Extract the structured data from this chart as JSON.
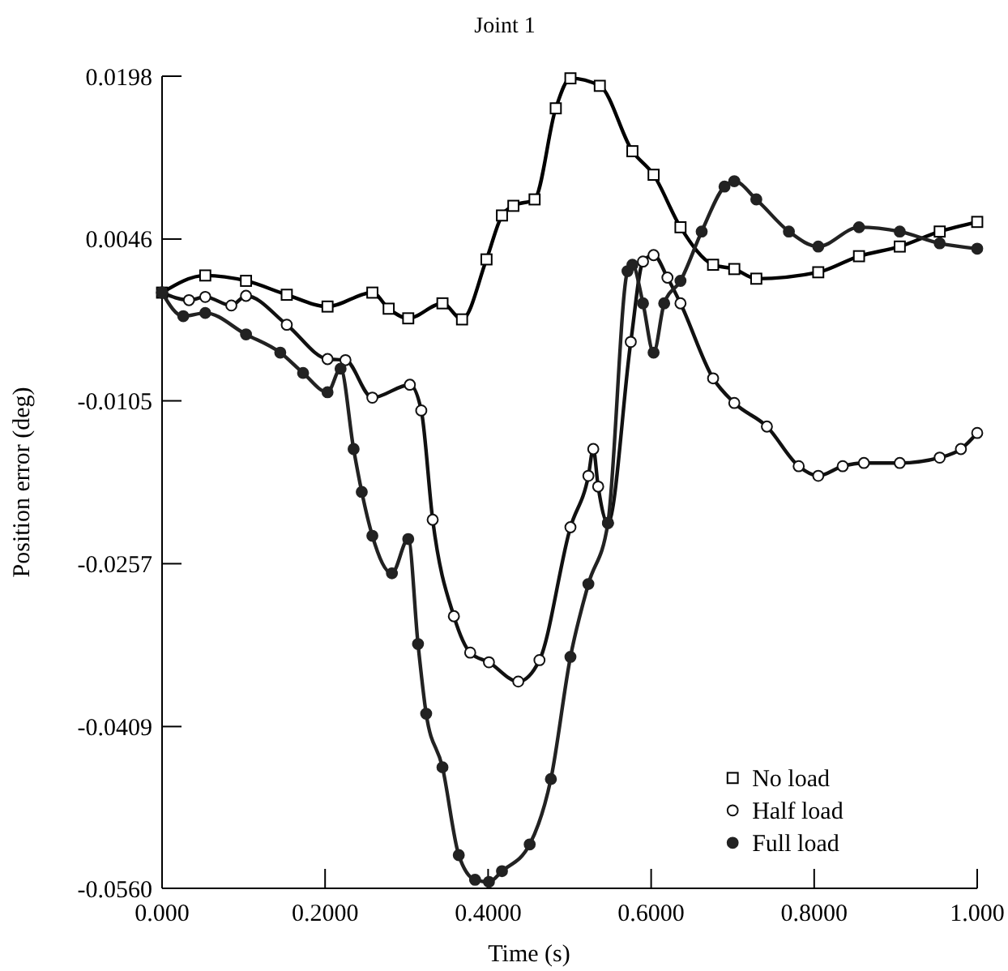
{
  "chart_data": {
    "type": "line",
    "title": "Joint 1",
    "xlabel": "Time (s)",
    "ylabel": "Position error (deg)",
    "xlim": [
      0,
      1
    ],
    "ylim": [
      -0.056,
      0.0198
    ],
    "xticks": [
      {
        "value": 0,
        "label": "0.000"
      },
      {
        "value": 0.2,
        "label": "0.2000"
      },
      {
        "value": 0.4,
        "label": "0.4000"
      },
      {
        "value": 0.6,
        "label": "0.6000"
      },
      {
        "value": 0.8,
        "label": "0.8000"
      },
      {
        "value": 1,
        "label": "1.000"
      }
    ],
    "yticks": [
      {
        "value": -0.056,
        "label": "-0.0560"
      },
      -0.0409,
      -0.0257,
      -0.0105,
      0.0046,
      0.0198
    ],
    "grid": false,
    "legend": "bottom right",
    "line_style": "solid",
    "series": [
      {
        "name": "No load",
        "color": "#000000",
        "marker": "square",
        "x": [
          0,
          0.053,
          0.103,
          0.153,
          0.203,
          0.258,
          0.278,
          0.302,
          0.344,
          0.368,
          0.398,
          0.417,
          0.431,
          0.457,
          0.483,
          0.501,
          0.537,
          0.577,
          0.603,
          0.636,
          0.676,
          0.702,
          0.729,
          0.805,
          0.855,
          0.905,
          0.954,
          1.0
        ],
        "values": [
          -0.0004,
          0.0012,
          0.0007,
          -0.0006,
          -0.0017,
          -0.0004,
          -0.0019,
          -0.0028,
          -0.0014,
          -0.0029,
          0.0027,
          0.0068,
          0.0077,
          0.0083,
          0.0168,
          0.0196,
          0.0189,
          0.0128,
          0.0106,
          0.0057,
          0.0022,
          0.0018,
          0.0009,
          0.0015,
          0.003,
          0.0039,
          0.0053,
          0.0062
        ]
      },
      {
        "name": "Half load",
        "color": "#111111",
        "marker": "circle",
        "x": [
          0,
          0.033,
          0.053,
          0.085,
          0.103,
          0.153,
          0.203,
          0.225,
          0.258,
          0.304,
          0.318,
          0.332,
          0.358,
          0.378,
          0.401,
          0.437,
          0.463,
          0.501,
          0.523,
          0.529,
          0.535,
          0.547,
          0.575,
          0.59,
          0.603,
          0.62,
          0.636,
          0.676,
          0.702,
          0.742,
          0.781,
          0.805,
          0.835,
          0.861,
          0.905,
          0.954,
          0.98,
          1.0
        ],
        "values": [
          -0.0004,
          -0.0011,
          -0.0008,
          -0.0016,
          -0.0007,
          -0.0034,
          -0.0066,
          -0.0067,
          -0.0102,
          -0.009,
          -0.0114,
          -0.0216,
          -0.0306,
          -0.034,
          -0.0349,
          -0.0367,
          -0.0347,
          -0.0223,
          -0.0175,
          -0.015,
          -0.0185,
          -0.0219,
          -0.005,
          0.0025,
          0.0031,
          0.001,
          -0.0014,
          -0.0084,
          -0.0107,
          -0.0129,
          -0.0166,
          -0.0175,
          -0.0166,
          -0.0163,
          -0.0163,
          -0.0158,
          -0.015,
          -0.0135
        ]
      },
      {
        "name": "Full load",
        "color": "#222222",
        "marker": "circle",
        "x": [
          0,
          0.026,
          0.053,
          0.103,
          0.145,
          0.173,
          0.203,
          0.219,
          0.235,
          0.245,
          0.258,
          0.282,
          0.302,
          0.314,
          0.324,
          0.344,
          0.364,
          0.384,
          0.401,
          0.417,
          0.451,
          0.477,
          0.501,
          0.523,
          0.547,
          0.571,
          0.577,
          0.59,
          0.603,
          0.616,
          0.636,
          0.662,
          0.69,
          0.702,
          0.729,
          0.769,
          0.805,
          0.855,
          0.905,
          0.954,
          1.0
        ],
        "values": [
          -0.0004,
          -0.0026,
          -0.0023,
          -0.0043,
          -0.006,
          -0.0079,
          -0.0097,
          -0.0075,
          -0.015,
          -0.019,
          -0.0231,
          -0.0266,
          -0.0234,
          -0.0332,
          -0.0397,
          -0.0447,
          -0.0529,
          -0.0552,
          -0.0554,
          -0.0544,
          -0.0519,
          -0.0458,
          -0.0344,
          -0.0276,
          -0.0219,
          0.0016,
          0.0022,
          -0.0014,
          -0.006,
          -0.0014,
          0.0007,
          0.0053,
          0.0095,
          0.01,
          0.0083,
          0.0053,
          0.0039,
          0.0057,
          0.0053,
          0.0042,
          0.0037
        ]
      }
    ]
  }
}
